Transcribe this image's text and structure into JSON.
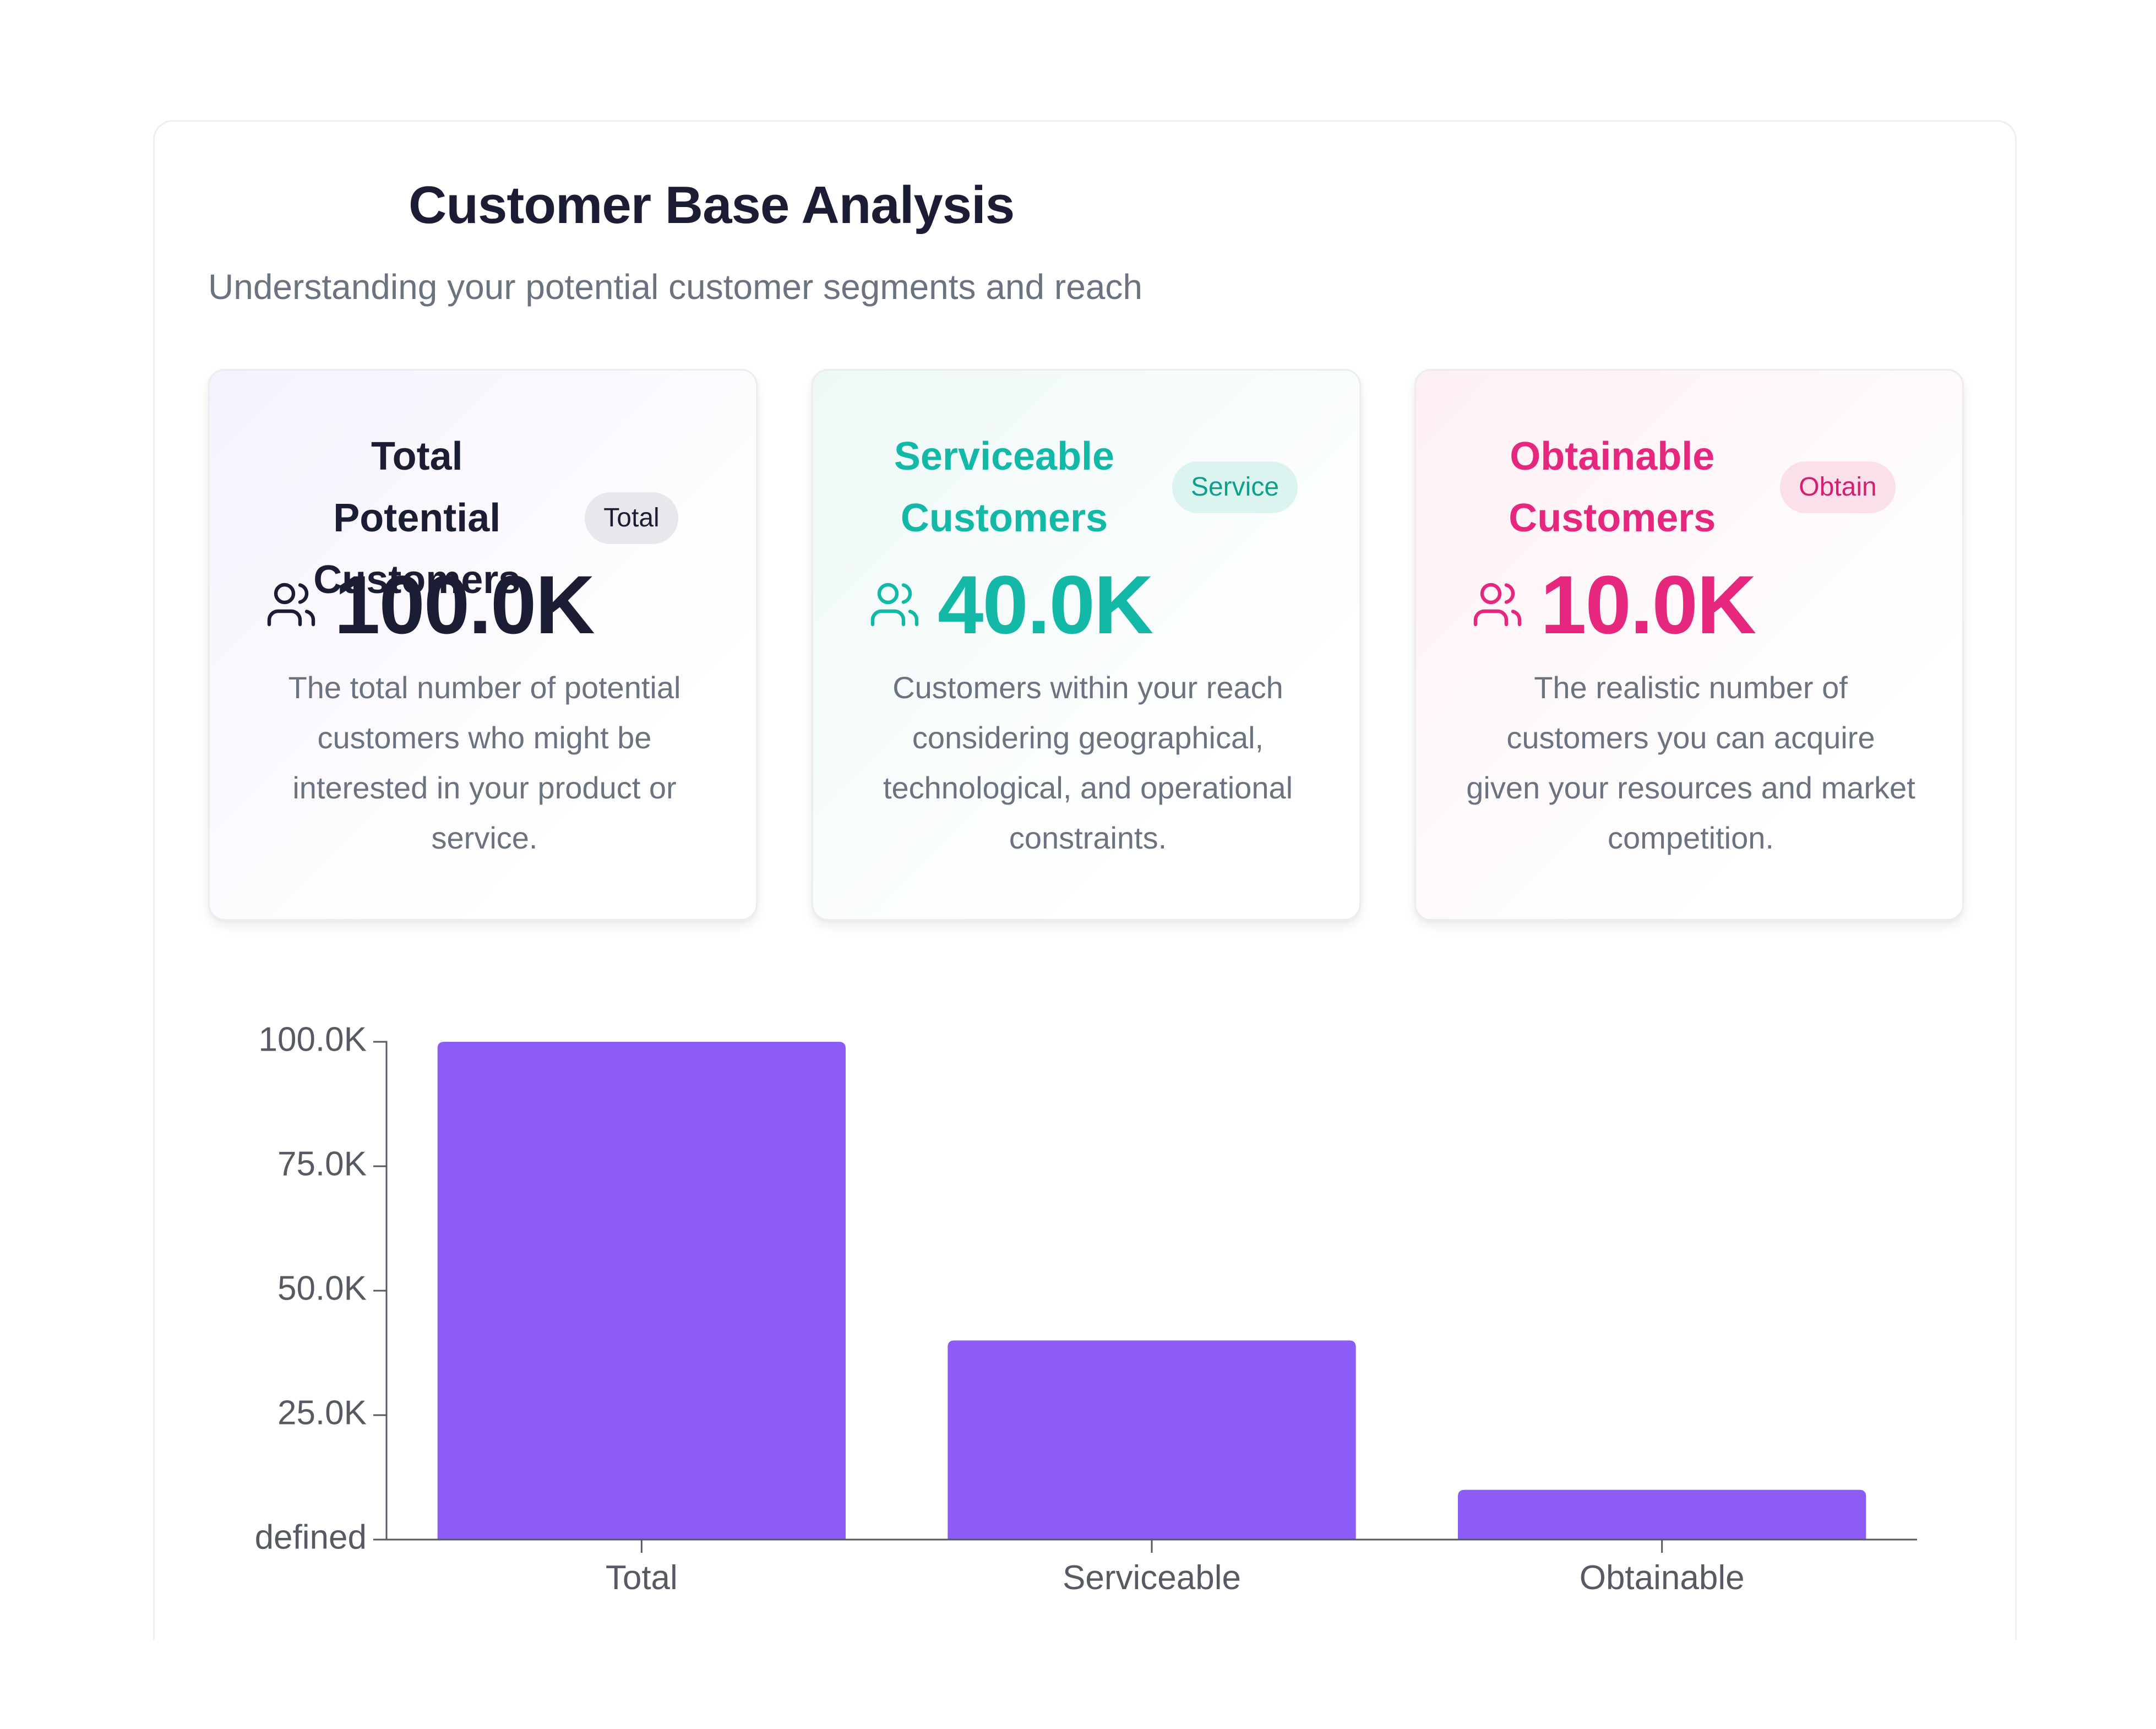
{
  "header": {
    "title": "Customer Base Analysis",
    "subtitle": "Understanding your potential customer segments and reach"
  },
  "cards": [
    {
      "title": "Total Potential Customers",
      "badge": "Total",
      "value": "100.0K",
      "description": "The total number of potential customers who might be interested in your product or service.",
      "icon": "users-icon",
      "accent": "#1a1d33",
      "badge_bg": "#e8e8ec",
      "badge_fg": "#1a1d33"
    },
    {
      "title": "Serviceable Customers",
      "badge": "Service",
      "value": "40.0K",
      "description": "Customers within your reach considering geographical, technological, and operational constraints.",
      "icon": "users-icon",
      "accent": "#14b8a6",
      "badge_bg": "#dcf4ef",
      "badge_fg": "#0f9f8e"
    },
    {
      "title": "Obtainable Customers",
      "badge": "Obtain",
      "value": "10.0K",
      "description": "The realistic number of customers you can acquire given your resources and market competition.",
      "icon": "users-icon",
      "accent": "#e5287e",
      "badge_bg": "#fbe0eb",
      "badge_fg": "#d41e72"
    }
  ],
  "chart_data": {
    "type": "bar",
    "categories": [
      "Total",
      "Serviceable",
      "Obtainable"
    ],
    "values": [
      100000,
      40000,
      10000
    ],
    "ylim": [
      0,
      100000
    ],
    "yticks": [
      0,
      25000,
      50000,
      75000,
      100000
    ],
    "ytick_labels": [
      "defined",
      "25.0K",
      "50.0K",
      "75.0K",
      "100.0K"
    ],
    "bar_color": "#8b5cf6",
    "axis_color": "#555a63",
    "xlabel": "",
    "ylabel": "",
    "title": "",
    "grid": false,
    "legend": "none"
  }
}
